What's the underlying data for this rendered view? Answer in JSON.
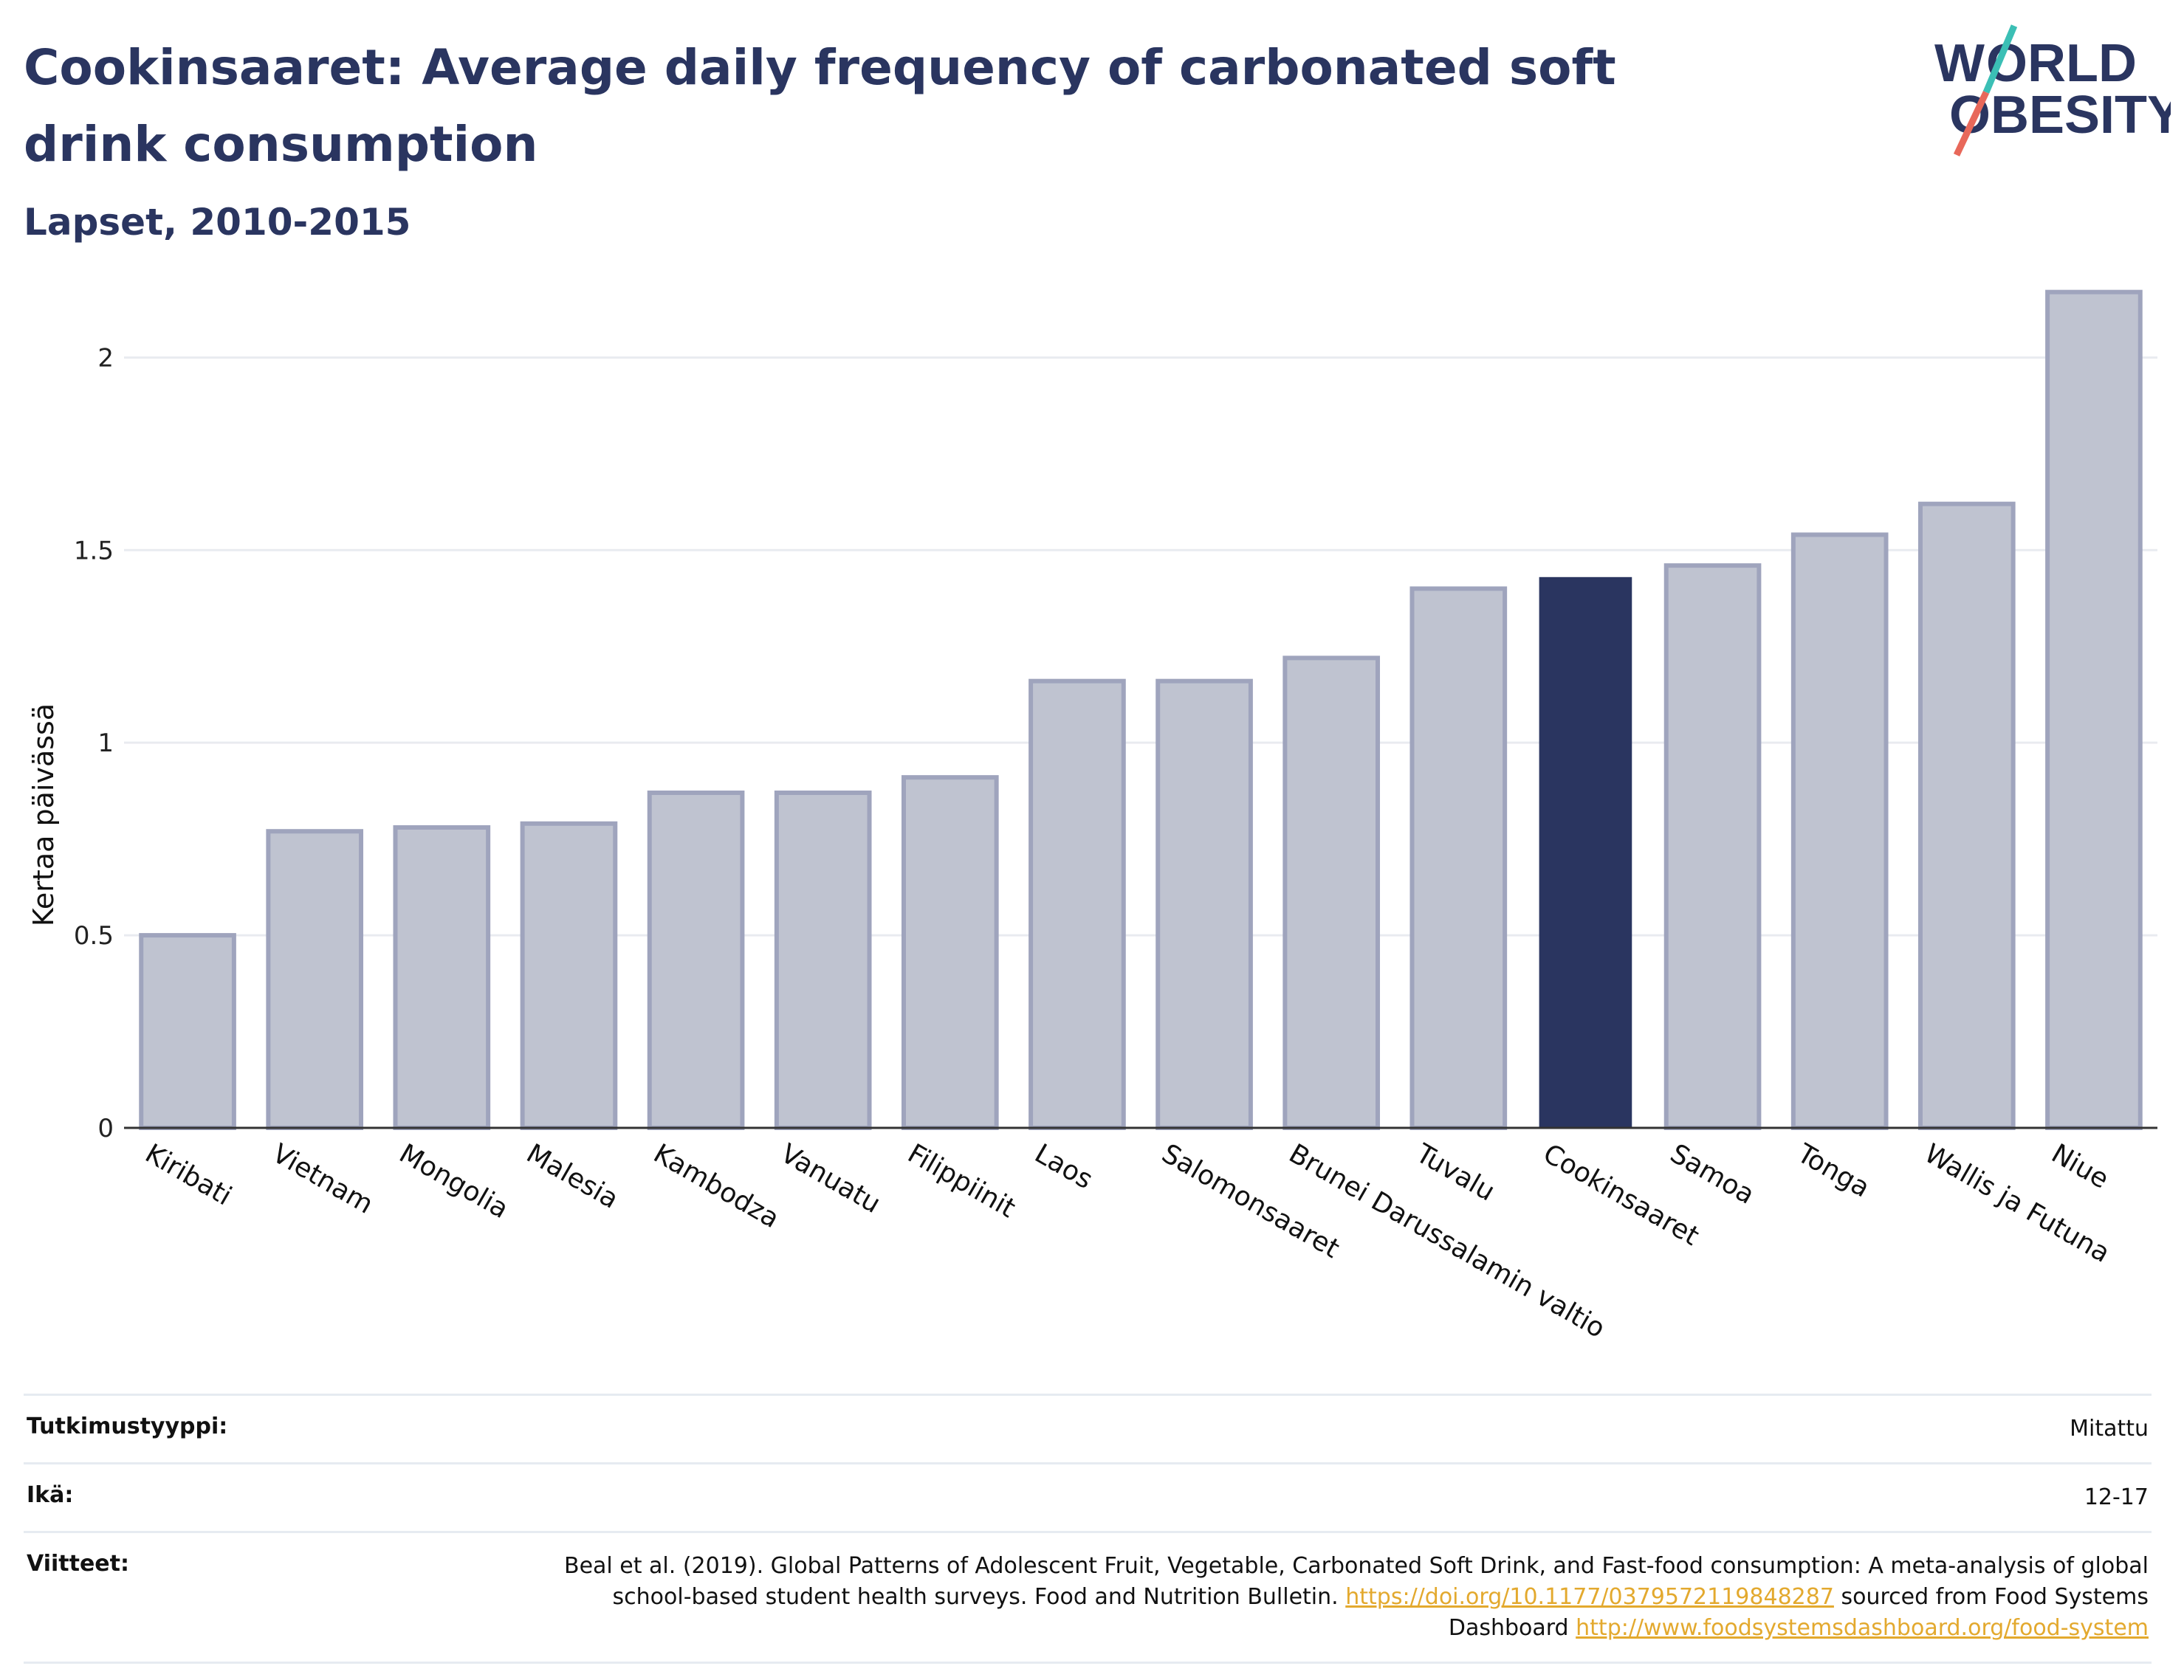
{
  "header": {
    "title": "Cookinsaaret: Average daily frequency of carbonated soft drink consumption",
    "subtitle": "Lapset, 2010-2015",
    "logo_text": "WORLD OBESITY"
  },
  "colors": {
    "title": "#2a3560",
    "bar_default_fill": "#bfc3d0",
    "bar_default_stroke": "#9fa4bd",
    "bar_highlight": "#2a3560",
    "logo_slash_teal": "#3bbfb5",
    "logo_slash_red": "#e8685a",
    "link": "#e3a92e"
  },
  "chart_data": {
    "type": "bar",
    "title": "Cookinsaaret: Average daily frequency of carbonated soft drink consumption",
    "subtitle": "Lapset, 2010-2015",
    "xlabel": "",
    "ylabel": "Kertaa päivässä",
    "ylim": [
      0,
      2.2
    ],
    "yticks": [
      0,
      0.5,
      1,
      1.5,
      2
    ],
    "ytick_labels": [
      "0",
      "0.5",
      "1",
      "1.5",
      "2"
    ],
    "grid": true,
    "highlight": "Cookinsaaret",
    "categories": [
      "Kiribati",
      "Vietnam",
      "Mongolia",
      "Malesia",
      "Kambodza",
      "Vanuatu",
      "Filippiinit",
      "Laos",
      "Salomonsaaret",
      "Brunei Darussalamin valtio",
      "Tuvalu",
      "Cookinsaaret",
      "Samoa",
      "Tonga",
      "Wallis ja Futuna",
      "Niue"
    ],
    "values": [
      0.5,
      0.77,
      0.78,
      0.79,
      0.87,
      0.87,
      0.91,
      1.16,
      1.16,
      1.22,
      1.4,
      1.43,
      1.46,
      1.54,
      1.62,
      2.17
    ]
  },
  "info": [
    {
      "label": "Tutkimustyyppi:",
      "value": "Mitattu"
    },
    {
      "label": "Ikä:",
      "value": "12-17"
    }
  ],
  "references": {
    "label": "Viitteet:",
    "text_1": "Beal et al. (2019). Global Patterns of Adolescent Fruit, Vegetable, Carbonated Soft Drink, and Fast-food consumption: A meta-analysis of global school-based student health surveys. Food and Nutrition Bulletin.",
    "link_1": "https://doi.org/10.1177/0379572119848287",
    "text_2": "sourced from Food Systems Dashboard",
    "link_2": "http://www.foodsystemsdashboard.org/food-system"
  }
}
